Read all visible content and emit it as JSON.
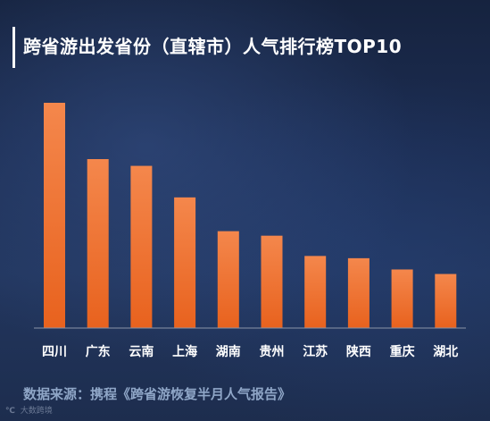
{
  "title": "跨省游出发省份（直辖市）人气排行榜TOP10",
  "source": "数据来源：携程《跨省游恢复半月人气报告》",
  "watermark": {
    "logo": "℃",
    "text": "大数跨境"
  },
  "colors": {
    "bar_top": "#f4874c",
    "bar_bottom": "#e8621e",
    "axis": "#8a94a8",
    "label": "#ffffff"
  },
  "chart_data": {
    "type": "bar",
    "title": "跨省游出发省份（直辖市）人气排行榜TOP10",
    "categories": [
      "四川",
      "广东",
      "云南",
      "上海",
      "湖南",
      "贵州",
      "江苏",
      "陕西",
      "重庆",
      "湖北"
    ],
    "values": [
      100,
      75,
      72,
      58,
      43,
      41,
      32,
      31,
      26,
      24
    ],
    "ylim": [
      0,
      100
    ],
    "grid": false,
    "legend": "none"
  }
}
